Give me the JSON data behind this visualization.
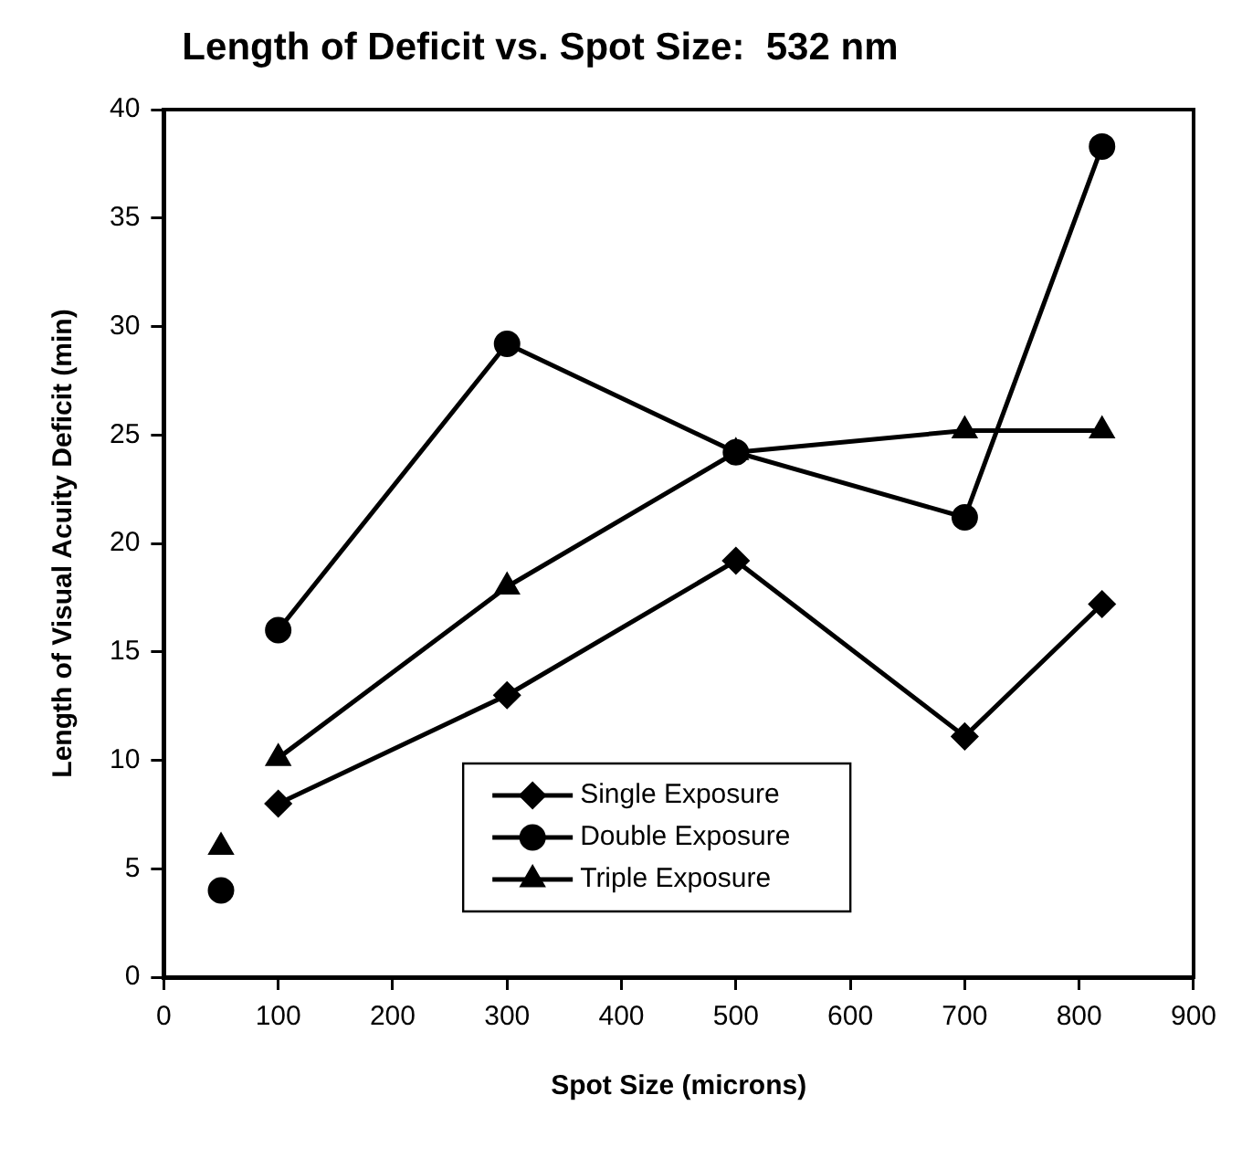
{
  "chart_data": {
    "type": "line",
    "title": "Length of Deficit vs. Spot Size:  532 nm",
    "xlabel": "Spot Size (microns)",
    "ylabel": "Length of Visual Acuity Deficit (min)",
    "xlim": [
      0,
      900
    ],
    "xticks": [
      0,
      100,
      200,
      300,
      400,
      500,
      600,
      700,
      800,
      900
    ],
    "ylim": [
      0,
      40
    ],
    "yticks": [
      0,
      5,
      10,
      15,
      20,
      25,
      30,
      35,
      40
    ],
    "grid": false,
    "legend": "bottom",
    "line_style": "solid",
    "series": [
      {
        "name": "Single Exposure",
        "color": "#000000",
        "marker": "diamond",
        "x": [
          100,
          300,
          500,
          700,
          820
        ],
        "values": [
          8,
          13,
          19.2,
          11.1,
          17.2
        ]
      },
      {
        "name": "Double Exposure",
        "color": "#000000",
        "marker": "circle",
        "x": [
          100,
          300,
          500,
          700,
          820
        ],
        "values": [
          16,
          29.2,
          24.2,
          21.2,
          38.3
        ]
      },
      {
        "name": "Triple Exposure",
        "color": "#000000",
        "marker": "triangle",
        "x": [
          100,
          300,
          500,
          700,
          820
        ],
        "values": [
          10.1,
          18,
          24.2,
          25.2,
          25.2
        ]
      },
      {
        "type": "scatter",
        "color": "#000000",
        "marker": "circle",
        "x": [
          50
        ],
        "values": [
          4
        ]
      },
      {
        "type": "scatter",
        "color": "#000000",
        "marker": "triangle",
        "x": [
          50
        ],
        "values": [
          6
        ]
      }
    ]
  }
}
